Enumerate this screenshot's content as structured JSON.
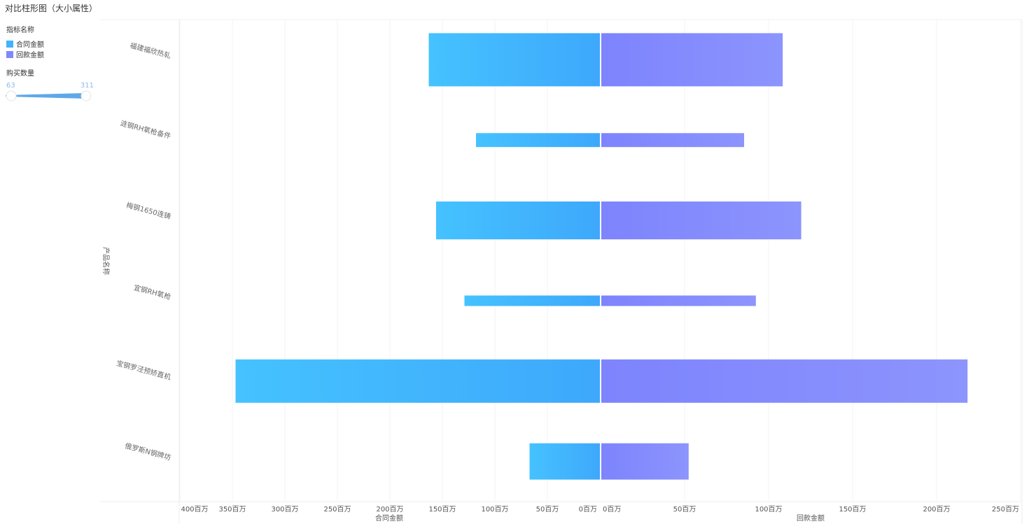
{
  "title": "对比柱形图（大小属性）",
  "legend": {
    "header": "指标名称",
    "items": [
      {
        "label": "合同金额",
        "color": "#41b4fd"
      },
      {
        "label": "回款金额",
        "color": "#8088fd"
      }
    ]
  },
  "size_legend": {
    "header": "购买数量",
    "min": "63",
    "max": "311"
  },
  "chart_data": {
    "type": "bar",
    "orientation": "horizontal-mirrored",
    "title": "对比柱形图（大小属性）",
    "ylabel": "产品名称",
    "categories": [
      "福建福欣热轧",
      "涟钢RH氧枪备件",
      "梅钢1650连铸",
      "宜钢RH氧枪",
      "宝钢罗泾预矫直机",
      "俄罗斯N钢牌坊"
    ],
    "series": [
      {
        "name": "合同金额",
        "axis": "left",
        "values": [
          163,
          118,
          156,
          129,
          347,
          67
        ],
        "color": "#41b4fd"
      },
      {
        "name": "回款金额",
        "axis": "right",
        "values": [
          108,
          85,
          119,
          92,
          218,
          52
        ],
        "color": "#8088fd"
      }
    ],
    "size": {
      "name": "购买数量",
      "values": [
        311,
        83,
        222,
        63,
        254,
        213
      ],
      "range": [
        63,
        311
      ]
    },
    "left_axis": {
      "label": "合同金额",
      "ticks": [
        "400百万",
        "350百万",
        "300百万",
        "250百万",
        "200百万",
        "150百万",
        "100百万",
        "50百万",
        "0百万"
      ],
      "max": 400
    },
    "right_axis": {
      "label": "回款金额",
      "ticks": [
        "0百万",
        "50百万",
        "100百万",
        "150百万",
        "200百万",
        "250百万"
      ],
      "max": 250
    },
    "unit": "百万"
  }
}
